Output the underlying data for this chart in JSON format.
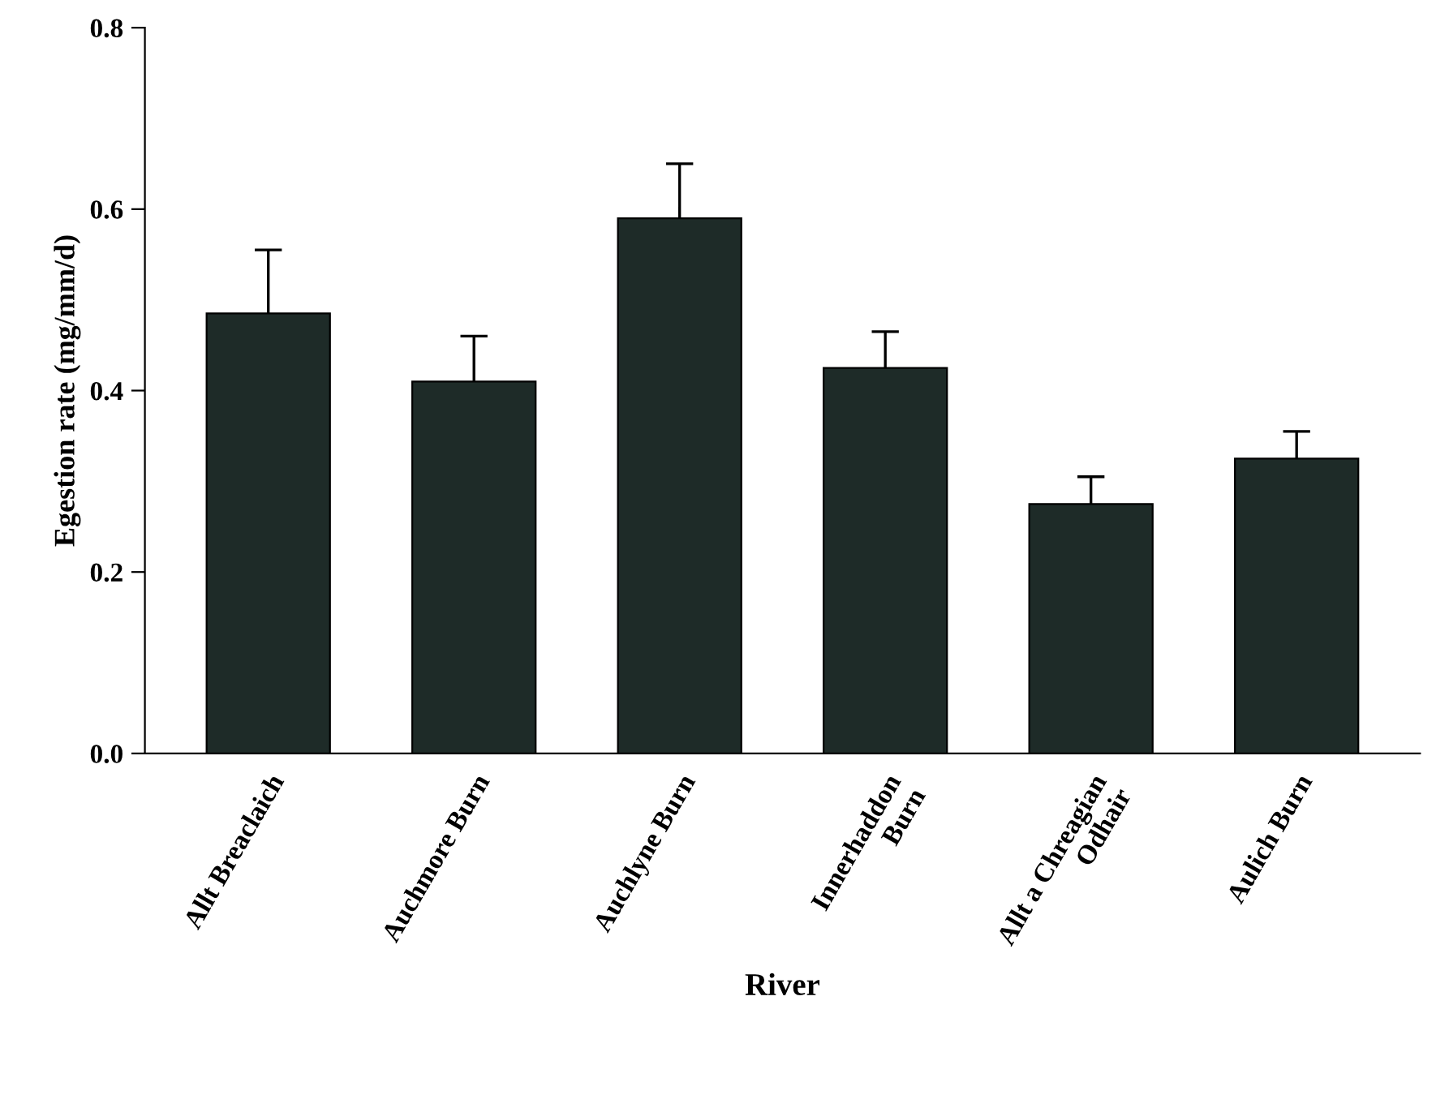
{
  "chart_data": {
    "type": "bar",
    "xlabel": "River",
    "ylabel": "Egestion rate (mg/mm/d)",
    "categories": [
      "Allt Breaclaich",
      "Auchmore Burn",
      "Auchlyne Burn",
      "Innerhaddon\nBurn",
      "Allt a Chreagian\nOdhair",
      "Aulich Burn"
    ],
    "values": [
      0.485,
      0.41,
      0.59,
      0.425,
      0.275,
      0.325
    ],
    "errors": [
      0.07,
      0.05,
      0.06,
      0.04,
      0.03,
      0.03
    ],
    "color": "#1e2b28",
    "ylim": [
      0,
      0.8
    ],
    "yticks": [
      {
        "value": 0,
        "label": "0.0"
      },
      0.2,
      0.4,
      0.6,
      0.8
    ],
    "grid": false
  }
}
